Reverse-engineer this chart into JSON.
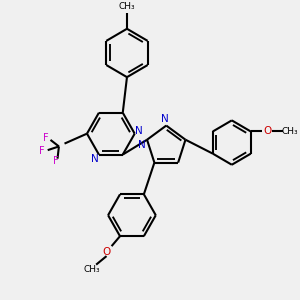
{
  "background_color": "#f0f0f0",
  "bond_color": "#000000",
  "nitrogen_color": "#0000cc",
  "fluorine_color": "#cc00cc",
  "oxygen_color": "#cc0000",
  "line_width": 1.5,
  "figsize": [
    3.0,
    3.0
  ],
  "dpi": 100,
  "xlim": [
    0,
    10
  ],
  "ylim": [
    0,
    10
  ]
}
